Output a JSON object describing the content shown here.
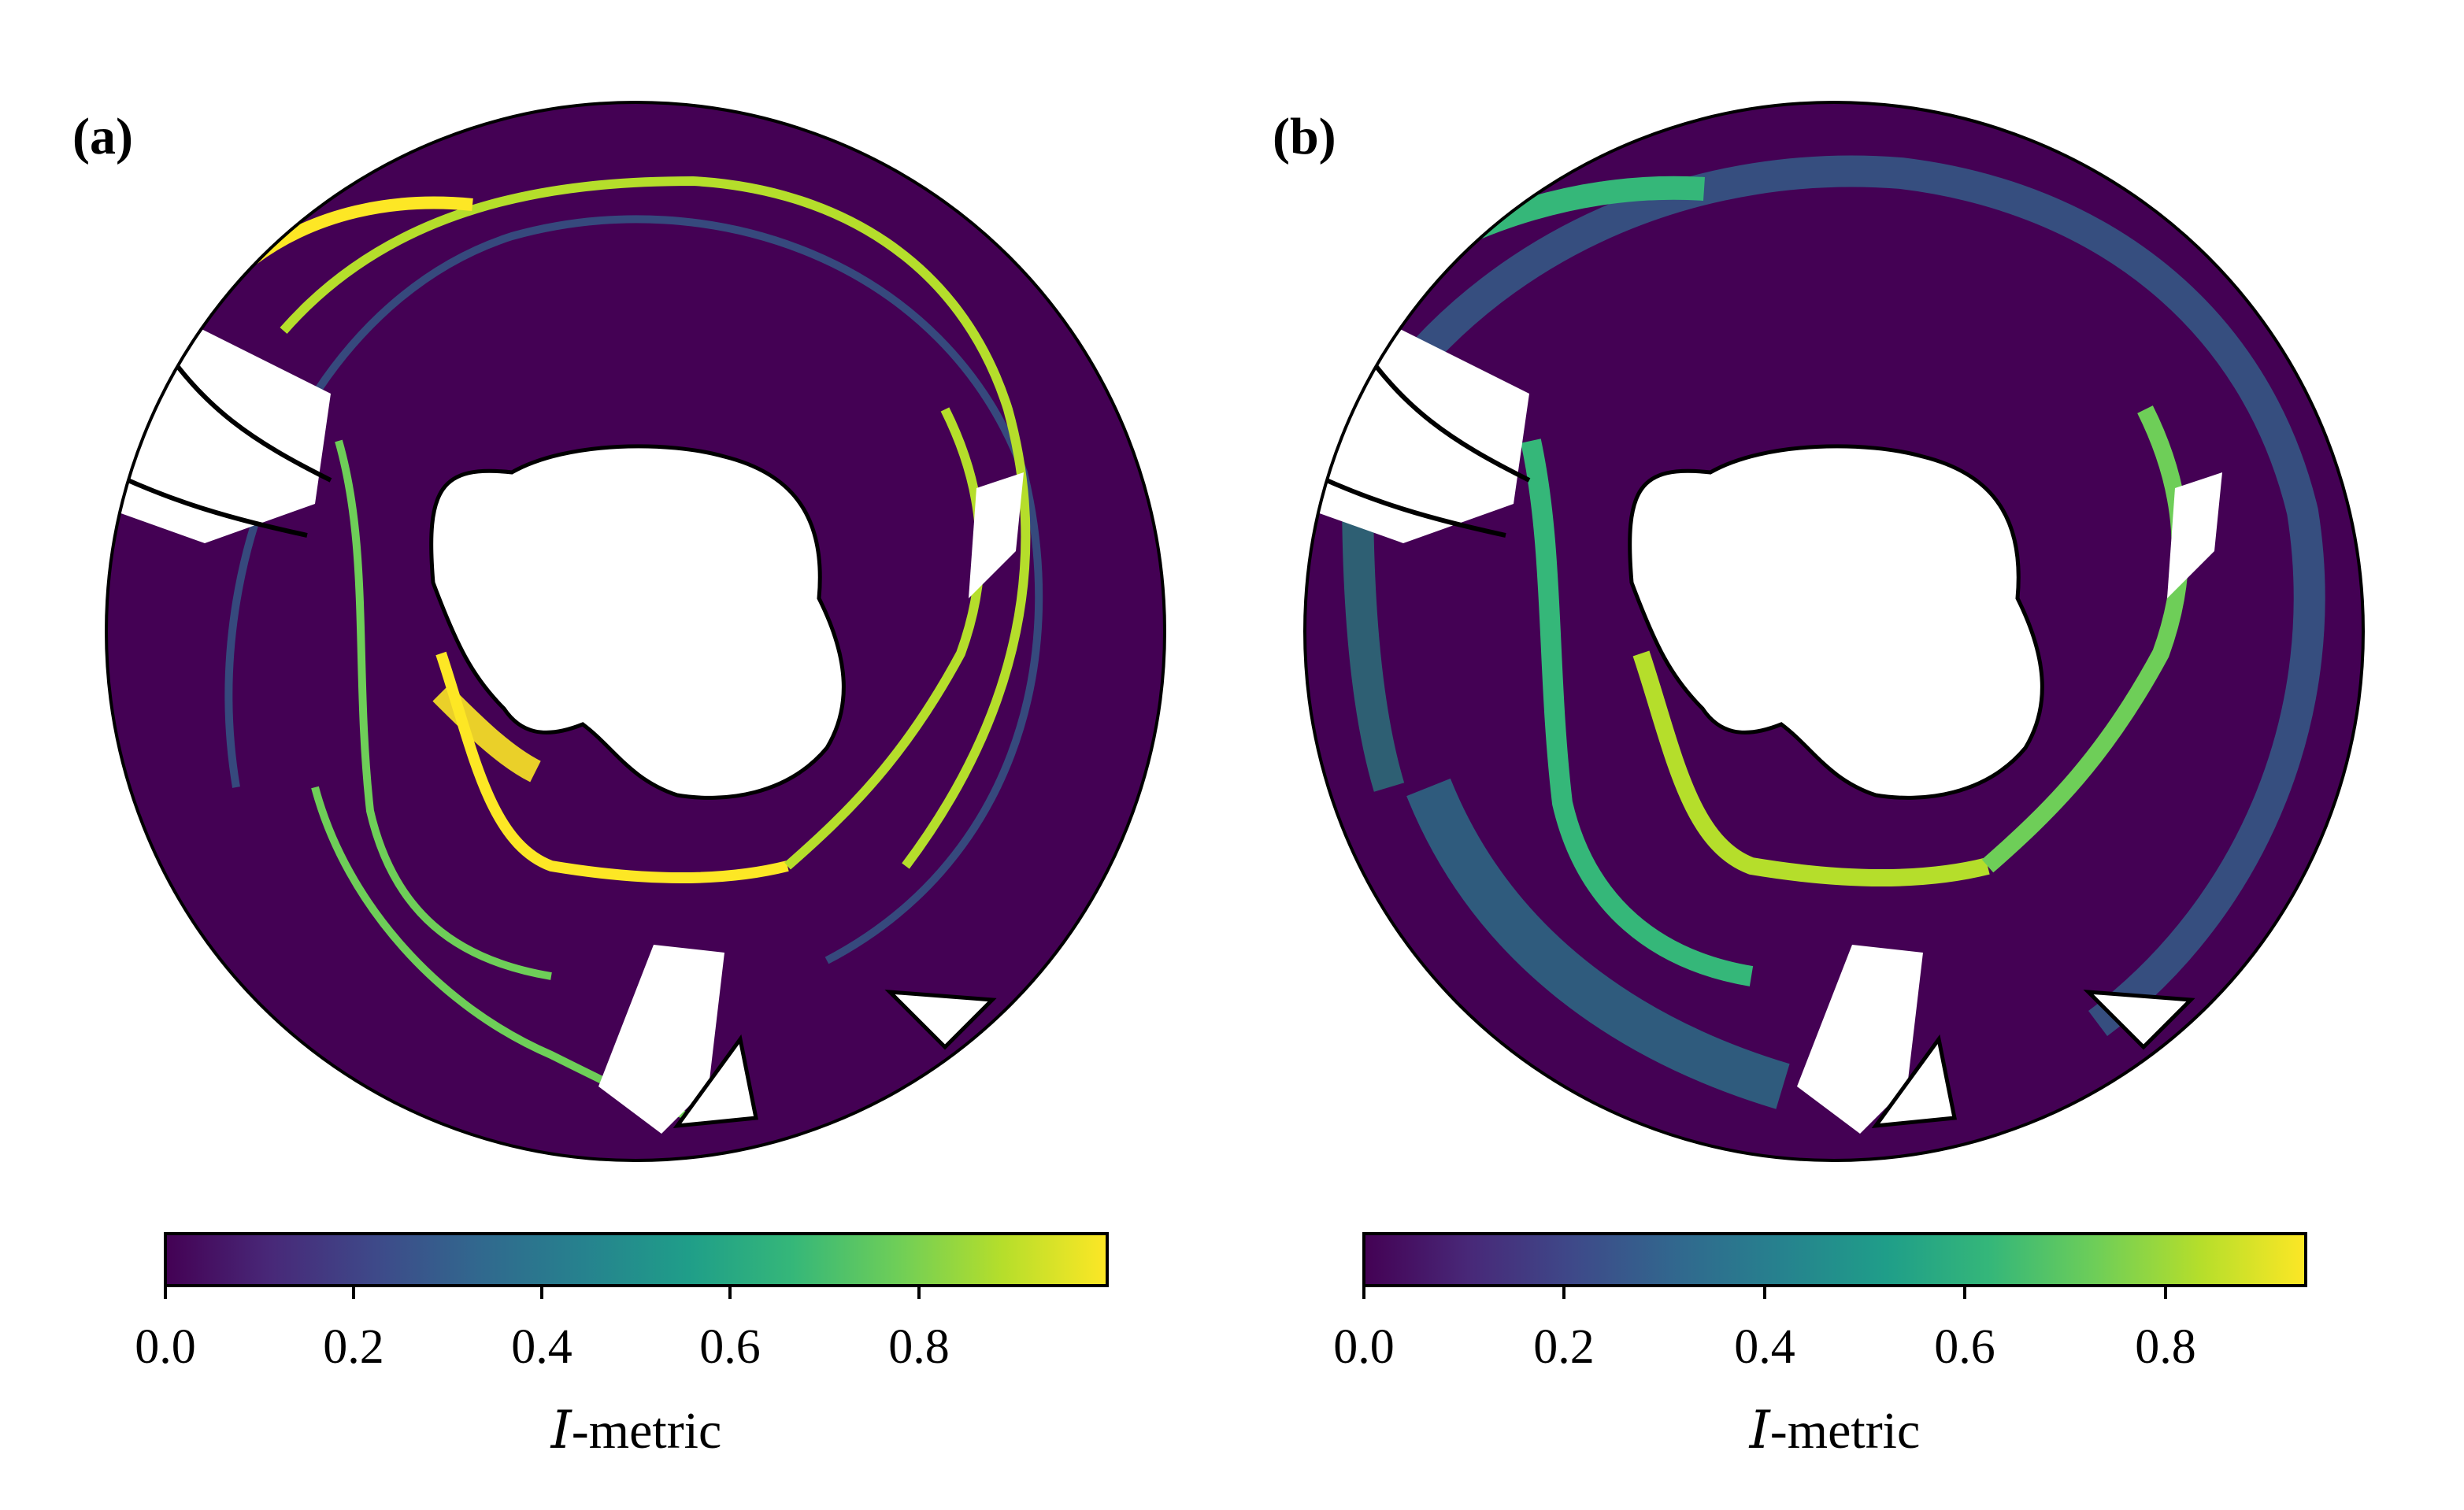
{
  "panels": [
    {
      "id": "a",
      "label": "(a)",
      "colorbar": {
        "colormap": "viridis",
        "vmin": 0.0,
        "vmax": 1.0,
        "ticks": [
          0.0,
          0.2,
          0.4,
          0.6,
          0.8
        ],
        "tick_labels": [
          "0.0",
          "0.2",
          "0.4",
          "0.6",
          "0.8"
        ],
        "title_symbol": "I",
        "title_suffix": "-metric"
      }
    },
    {
      "id": "b",
      "label": "(b)",
      "colorbar": {
        "colormap": "viridis",
        "vmin": 0.0,
        "vmax": 0.94,
        "ticks": [
          0.0,
          0.2,
          0.4,
          0.6,
          0.8
        ],
        "tick_labels": [
          "0.0",
          "0.2",
          "0.4",
          "0.6",
          "0.8"
        ],
        "title_symbol": "I",
        "title_suffix": "-metric"
      }
    }
  ],
  "colors": {
    "background_ocean": "#440154",
    "viridis_stops": [
      "#440154",
      "#482878",
      "#3e4989",
      "#31688e",
      "#26828e",
      "#1f9e89",
      "#35b779",
      "#6ece58",
      "#b5de2b",
      "#fde725"
    ],
    "land": "#ffffff",
    "coast": "#000000"
  }
}
